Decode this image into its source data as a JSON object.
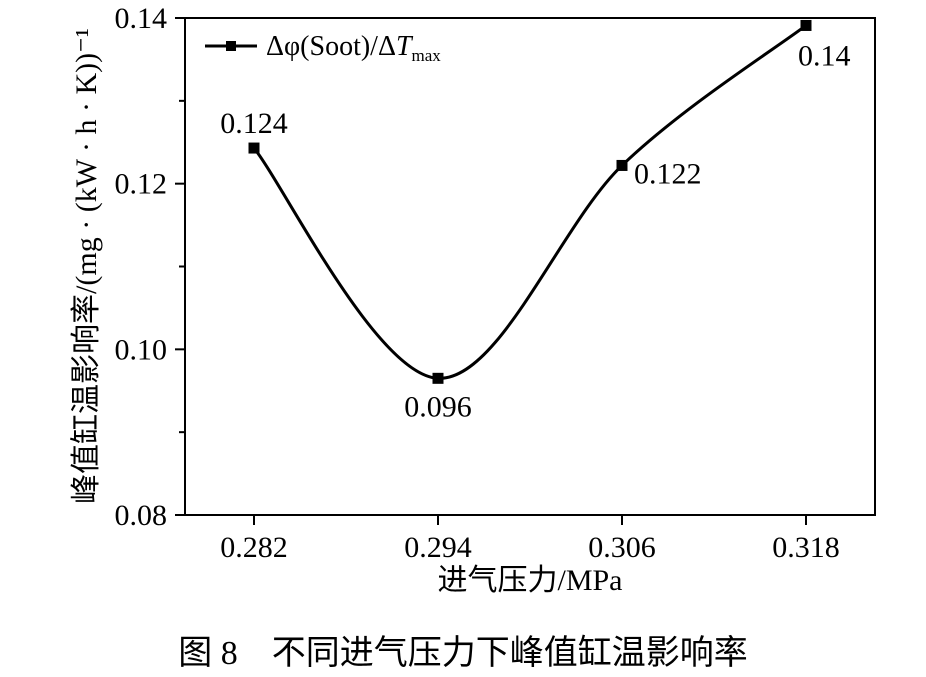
{
  "chart_data": {
    "type": "line",
    "x": [
      0.282,
      0.294,
      0.306,
      0.318
    ],
    "series": [
      {
        "name": "Δφ(Soot)/ΔTmax",
        "values": [
          0.1243,
          0.0965,
          0.1222,
          0.1391
        ],
        "data_labels": [
          "0.124",
          "0.096",
          "0.122",
          "0.14"
        ]
      }
    ],
    "x_ticks": [
      "0.282",
      "0.294",
      "0.306",
      "0.318"
    ],
    "y_ticks": [
      "0.08",
      "0.10",
      "0.12",
      "0.14"
    ],
    "xlim": [
      0.2775,
      0.3225
    ],
    "ylim": [
      0.08,
      0.14
    ],
    "xlabel": "进气压力/MPa",
    "ylabel": "峰值缸温影响率/(mg · (kW · h · K))⁻¹",
    "legend": {
      "prefix": "Δφ(Soot)/Δ",
      "var": "T",
      "sub": "max",
      "position": "top-left"
    },
    "line_color": "#000000",
    "marker": "square",
    "grid": false
  },
  "caption": "图 8    不同进气压力下峰值缸温影响率"
}
